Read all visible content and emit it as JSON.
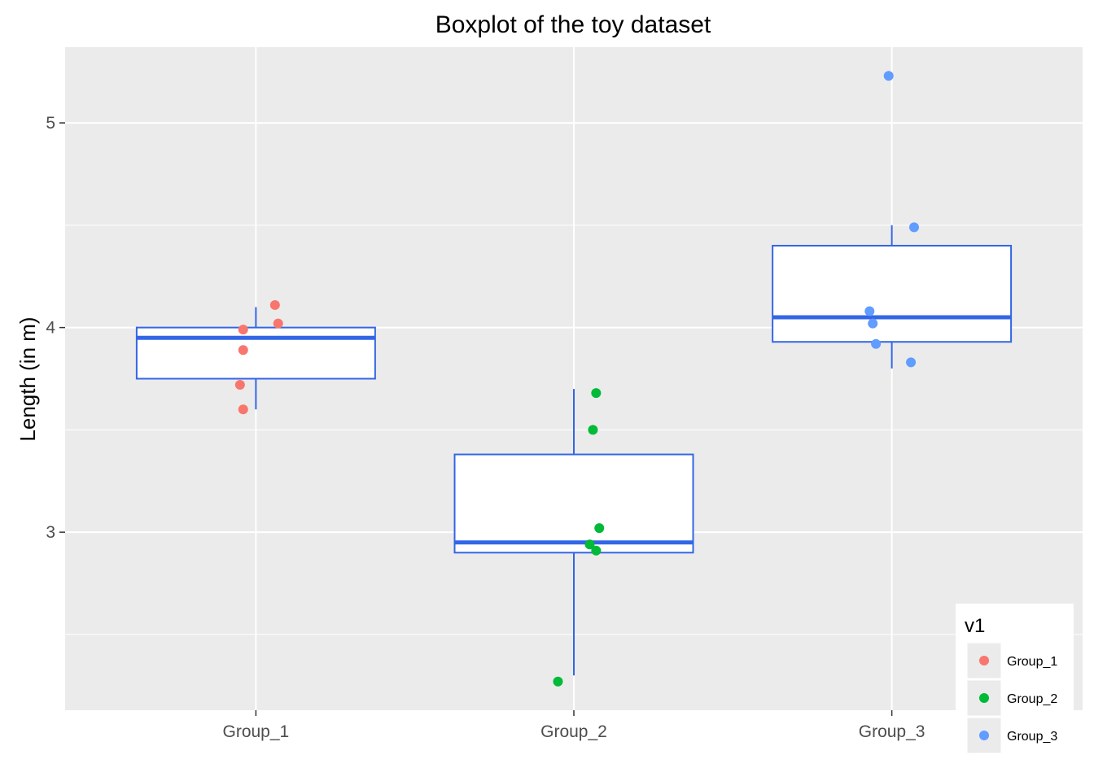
{
  "chart_data": {
    "type": "box",
    "title": "Boxplot of the toy dataset",
    "xlabel": "",
    "ylabel": "Length (in m)",
    "categories": [
      "Group_1",
      "Group_2",
      "Group_3"
    ],
    "ylim": [
      2.13,
      5.37
    ],
    "yticks": [
      3,
      4,
      5
    ],
    "grid": true,
    "legend": {
      "title": "v1",
      "position": "bottom-right",
      "entries": [
        "Group_1",
        "Group_2",
        "Group_3"
      ]
    },
    "colors": {
      "Group_1": "#f8766d",
      "Group_2": "#00ba38",
      "Group_3": "#619cff",
      "box_line": "#3366e6",
      "panel": "#ebebeb",
      "grid": "#ffffff"
    },
    "boxes": [
      {
        "group": "Group_1",
        "min": 3.6,
        "q1": 3.75,
        "median": 3.95,
        "q3": 4.0,
        "max": 4.1
      },
      {
        "group": "Group_2",
        "min": 2.3,
        "q1": 2.9,
        "median": 2.95,
        "q3": 3.38,
        "max": 3.7
      },
      {
        "group": "Group_3",
        "min": 3.8,
        "q1": 3.93,
        "median": 4.05,
        "q3": 4.4,
        "max": 4.5
      }
    ],
    "points": [
      {
        "group": "Group_1",
        "jitter": 0.06,
        "y": 4.11
      },
      {
        "group": "Group_1",
        "jitter": 0.07,
        "y": 4.02
      },
      {
        "group": "Group_1",
        "jitter": -0.04,
        "y": 3.99
      },
      {
        "group": "Group_1",
        "jitter": -0.04,
        "y": 3.89
      },
      {
        "group": "Group_1",
        "jitter": -0.05,
        "y": 3.72
      },
      {
        "group": "Group_1",
        "jitter": -0.04,
        "y": 3.6
      },
      {
        "group": "Group_2",
        "jitter": 0.07,
        "y": 3.68
      },
      {
        "group": "Group_2",
        "jitter": 0.06,
        "y": 3.5
      },
      {
        "group": "Group_2",
        "jitter": 0.08,
        "y": 3.02
      },
      {
        "group": "Group_2",
        "jitter": 0.05,
        "y": 2.94
      },
      {
        "group": "Group_2",
        "jitter": 0.07,
        "y": 2.91
      },
      {
        "group": "Group_2",
        "jitter": -0.05,
        "y": 2.27
      },
      {
        "group": "Group_3",
        "jitter": -0.01,
        "y": 5.23
      },
      {
        "group": "Group_3",
        "jitter": 0.07,
        "y": 4.49
      },
      {
        "group": "Group_3",
        "jitter": -0.07,
        "y": 4.08
      },
      {
        "group": "Group_3",
        "jitter": -0.06,
        "y": 4.02
      },
      {
        "group": "Group_3",
        "jitter": -0.05,
        "y": 3.92
      },
      {
        "group": "Group_3",
        "jitter": 0.06,
        "y": 3.83
      }
    ]
  }
}
